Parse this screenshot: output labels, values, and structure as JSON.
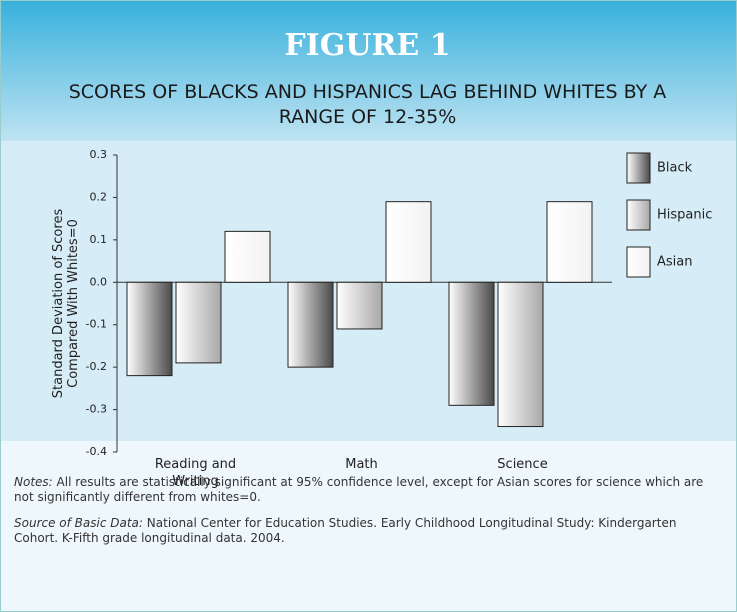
{
  "chart_data": {
    "type": "bar",
    "title": "FIGURE 1",
    "subtitle": "SCORES OF BLACKS AND HISPANICS LAG BEHIND WHITES BY A RANGE OF 12-35%",
    "y_label": [
      "Standard Deviation of Scores",
      "Compared With Whites=0"
    ],
    "categories": [
      "Reading and Writing",
      "Math",
      "Science"
    ],
    "series": [
      {
        "name": "Black",
        "color": "#4a4a4a",
        "values": [
          -0.22,
          -0.2,
          -0.29
        ]
      },
      {
        "name": "Hispanic",
        "color": "#a8a8a8",
        "values": [
          -0.19,
          -0.11,
          -0.34
        ]
      },
      {
        "name": "Asian",
        "color": "#f2f2f2",
        "values": [
          0.12,
          0.19,
          0.19
        ]
      }
    ],
    "ylim": [
      -0.4,
      0.3
    ],
    "yticks": [
      0.3,
      0.2,
      0.1,
      {
        "value": 0,
        "label": "0.0"
      },
      -0.1,
      -0.2,
      -0.3,
      -0.4
    ],
    "legend": "right",
    "notes": {
      "label": "Notes:",
      "text": "All results are statistically significant at 95% confidence level, except for Asian scores for science which are not significantly different from whites=0."
    },
    "source": {
      "label": "Source of Basic Data:",
      "text": "National Center for Education Studies. Early Childhood Longitudinal Study: Kindergarten Cohort. K-Fifth grade longitudinal data. 2004."
    }
  }
}
